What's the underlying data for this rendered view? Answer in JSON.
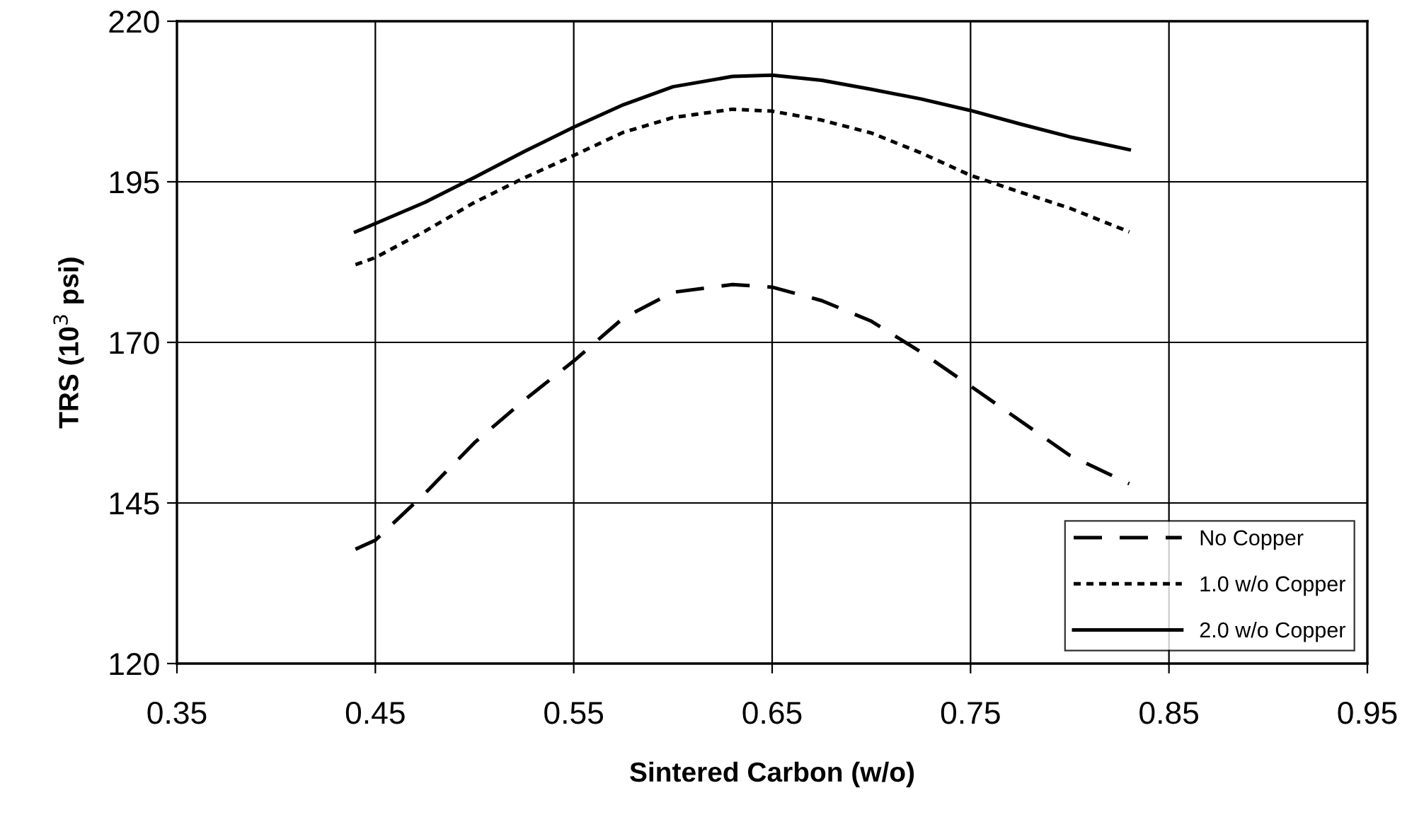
{
  "chart_data": {
    "type": "line",
    "xlabel": "Sintered Carbon (w/o)",
    "ylabel": "TRS (10$^{3}$ psi)",
    "x": [
      0.44,
      0.45,
      0.475,
      0.5,
      0.525,
      0.55,
      0.575,
      0.6,
      0.63,
      0.65,
      0.675,
      0.7,
      0.725,
      0.75,
      0.775,
      0.8,
      0.83
    ],
    "series": [
      {
        "name": "No Copper",
        "color": "#000000",
        "line_style": "dashed",
        "values": [
          137.8,
          139.2,
          146.5,
          154.4,
          161.0,
          167.1,
          173.8,
          177.8,
          179.0,
          178.6,
          176.5,
          173.3,
          168.5,
          163.2,
          157.8,
          152.4,
          148.0
        ]
      },
      {
        "name": "1.0 w/o Copper",
        "color": "#000000",
        "line_style": "dotted",
        "values": [
          182.1,
          183.2,
          187.3,
          191.8,
          195.6,
          199.1,
          202.7,
          205.0,
          206.3,
          206.0,
          204.6,
          202.6,
          199.5,
          196.0,
          193.4,
          190.9,
          187.2
        ]
      },
      {
        "name": "2.0 w/o Copper",
        "color": "#000000",
        "line_style": "solid",
        "values": [
          187.2,
          188.5,
          191.8,
          195.7,
          199.7,
          203.5,
          207.0,
          209.8,
          211.4,
          211.6,
          210.8,
          209.4,
          207.9,
          206.1,
          204.0,
          202.0,
          200.0
        ]
      }
    ],
    "xlim": [
      0.35,
      0.95
    ],
    "xticks": [
      0.35,
      0.45,
      0.55,
      0.65,
      0.75,
      0.85,
      0.95
    ],
    "ylim": [
      120,
      220
    ],
    "yticks": [
      120,
      145,
      170,
      195,
      220
    ],
    "grid": true,
    "legend": "bottom right",
    "marker": "none"
  }
}
